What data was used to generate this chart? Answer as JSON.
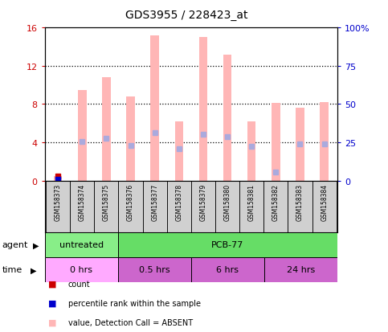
{
  "title": "GDS3955 / 228423_at",
  "samples": [
    "GSM158373",
    "GSM158374",
    "GSM158375",
    "GSM158376",
    "GSM158377",
    "GSM158378",
    "GSM158379",
    "GSM158380",
    "GSM158381",
    "GSM158382",
    "GSM158383",
    "GSM158384"
  ],
  "bar_values": [
    0.5,
    9.5,
    10.8,
    8.8,
    15.2,
    6.2,
    15.0,
    13.2,
    6.2,
    8.1,
    7.6,
    8.2
  ],
  "rank_values": [
    0.1,
    4.1,
    4.4,
    3.7,
    5.0,
    3.3,
    4.8,
    4.6,
    3.6,
    0.9,
    3.8,
    3.8
  ],
  "ylim_left": [
    0,
    16
  ],
  "ylim_right": [
    0,
    100
  ],
  "yticks_left": [
    0,
    4,
    8,
    12,
    16
  ],
  "yticks_right": [
    0,
    25,
    50,
    75,
    100
  ],
  "ytick_labels_right": [
    "0",
    "25",
    "50",
    "75",
    "100%"
  ],
  "bar_color": "#FFB6B6",
  "rank_color": "#AAAADD",
  "dot_color_red": "#CC0000",
  "dot_color_blue": "#0000CC",
  "agent_untreated_color": "#88EE88",
  "agent_pcb_color": "#66DD66",
  "time_color_0": "#FFAAFF",
  "time_color_rest": "#CC66CC",
  "grid_color": "#000000",
  "bg_color": "#FFFFFF",
  "chart_bg": "#FFFFFF",
  "sample_box_color": "#D0D0D0",
  "left_tick_color": "#CC0000",
  "right_tick_color": "#0000CC",
  "bar_width": 0.35
}
